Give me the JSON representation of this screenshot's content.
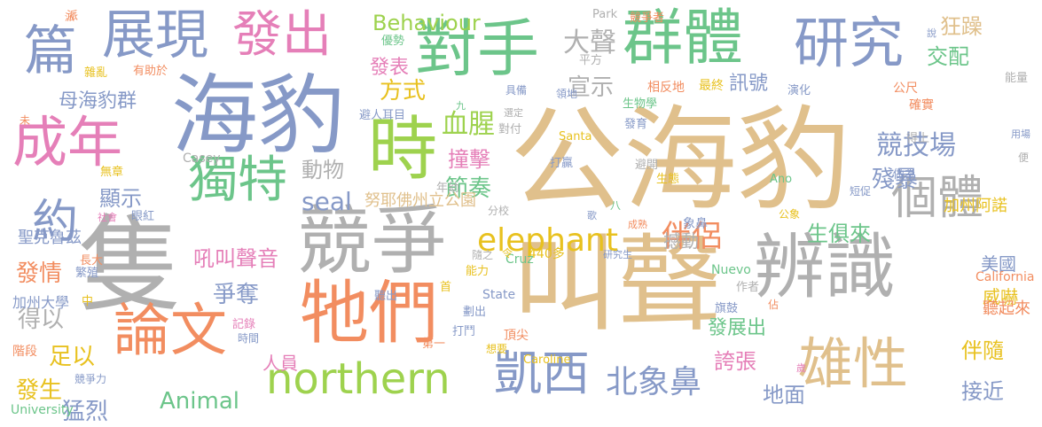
{
  "palette": {
    "tan": "#e0c08c",
    "blue": "#8699c7",
    "green": "#6cc58a",
    "lime": "#9ed24e",
    "pink": "#e57fb8",
    "orange": "#f28d60",
    "gray": "#b0b0b0",
    "yellow": "#e8c11f"
  },
  "words": [
    {
      "text": "公海豹",
      "color": "#e0c08c",
      "vertical": false
    },
    {
      "text": "叫聲",
      "color": "#e0c08c",
      "vertical": false
    },
    {
      "text": "隻",
      "color": "#b0b0b0",
      "vertical": false
    },
    {
      "text": "海豹",
      "color": "#8699c7",
      "vertical": false
    },
    {
      "text": "競爭",
      "color": "#b0b0b0",
      "vertical": false
    },
    {
      "text": "牠們",
      "color": "#f28d60",
      "vertical": false
    },
    {
      "text": "辨識",
      "color": "#b0b0b0",
      "vertical": false
    },
    {
      "text": "時",
      "color": "#9ed24e",
      "vertical": false
    },
    {
      "text": "對手",
      "color": "#6cc58a",
      "vertical": false
    },
    {
      "text": "論文",
      "color": "#f28d60",
      "vertical": false
    },
    {
      "text": "群體",
      "color": "#6cc58a",
      "vertical": false
    },
    {
      "text": "篇",
      "color": "#8699c7",
      "vertical": false
    },
    {
      "text": "展現",
      "color": "#8699c7",
      "vertical": false
    },
    {
      "text": "發出",
      "color": "#e57fb8",
      "vertical": false
    },
    {
      "text": "研究",
      "color": "#8699c7",
      "vertical": false
    },
    {
      "text": "成年",
      "color": "#e57fb8",
      "vertical": false
    },
    {
      "text": "獨特",
      "color": "#6cc58a",
      "vertical": false
    },
    {
      "text": "雄性",
      "color": "#e0c08c",
      "vertical": false
    },
    {
      "text": "個體",
      "color": "#b0b0b0",
      "vertical": false
    },
    {
      "text": "凱西",
      "color": "#8699c7",
      "vertical": false
    },
    {
      "text": "northern",
      "color": "#9ed24e",
      "vertical": false
    },
    {
      "text": "約",
      "color": "#8699c7",
      "vertical": false
    },
    {
      "text": "北象鼻",
      "color": "#8699c7",
      "vertical": false
    },
    {
      "text": "elephant",
      "color": "#e8c11f",
      "vertical": false
    },
    {
      "text": "伴侶",
      "color": "#f28d60",
      "vertical": false
    },
    {
      "text": "競技場",
      "color": "#8699c7",
      "vertical": false
    },
    {
      "text": "殘暴",
      "color": "#8699c7",
      "vertical": false
    },
    {
      "text": "血腥",
      "color": "#9ed24e",
      "vertical": false
    },
    {
      "text": "撞擊",
      "color": "#e57fb8",
      "vertical": false
    },
    {
      "text": "節奏",
      "color": "#6cc58a",
      "vertical": false
    },
    {
      "text": "Behaviour",
      "color": "#9ed24e",
      "vertical": false
    },
    {
      "text": "大聲",
      "color": "#b0b0b0",
      "vertical": false
    },
    {
      "text": "宣示",
      "color": "#b0b0b0",
      "vertical": false
    },
    {
      "text": "母海豹群",
      "color": "#8699c7",
      "vertical": false
    },
    {
      "text": "seal",
      "color": "#8699c7",
      "vertical": false
    },
    {
      "text": "顯示",
      "color": "#8699c7",
      "vertical": false
    },
    {
      "text": "吼叫聲音",
      "color": "#e57fb8",
      "vertical": false
    },
    {
      "text": "爭奪",
      "color": "#8699c7",
      "vertical": false
    },
    {
      "text": "得以",
      "color": "#b0b0b0",
      "vertical": false
    },
    {
      "text": "足以",
      "color": "#e8c11f",
      "vertical": false
    },
    {
      "text": "發情",
      "color": "#f28d60",
      "vertical": false
    },
    {
      "text": "發生",
      "color": "#e8c11f",
      "vertical": false
    },
    {
      "text": "猛烈",
      "color": "#8699c7",
      "vertical": false
    },
    {
      "text": "Animal",
      "color": "#6cc58a",
      "vertical": false
    },
    {
      "text": "人員",
      "color": "#e57fb8",
      "vertical": false
    },
    {
      "text": "誇張",
      "color": "#e57fb8",
      "vertical": false
    },
    {
      "text": "地面",
      "color": "#8699c7",
      "vertical": false
    },
    {
      "text": "接近",
      "color": "#8699c7",
      "vertical": false
    },
    {
      "text": "伴隨",
      "color": "#e8c11f",
      "vertical": false
    },
    {
      "text": "威嚇",
      "color": "#e8c11f",
      "vertical": false
    },
    {
      "text": "發展出",
      "color": "#6cc58a",
      "vertical": false
    },
    {
      "text": "生俱來",
      "color": "#6cc58a",
      "vertical": false
    },
    {
      "text": "撼動",
      "color": "#b0b0b0",
      "vertical": false
    },
    {
      "text": "動物",
      "color": "#b0b0b0",
      "vertical": false
    },
    {
      "text": "訊號",
      "color": "#8699c7",
      "vertical": false
    },
    {
      "text": "交配",
      "color": "#6cc58a",
      "vertical": false
    },
    {
      "text": "狂躁",
      "color": "#e0c08c",
      "vertical": false
    },
    {
      "text": "方式",
      "color": "#e8c11f",
      "vertical": false
    },
    {
      "text": "發表",
      "color": "#e57fb8",
      "vertical": false
    },
    {
      "text": "美國",
      "color": "#8699c7",
      "vertical": false
    },
    {
      "text": "加州阿諾",
      "color": "#e8c11f",
      "vertical": false
    },
    {
      "text": "努耶佛州立公園",
      "color": "#e0c08c",
      "vertical": false
    },
    {
      "text": "聖克魯茲",
      "color": "#8699c7",
      "vertical": false
    },
    {
      "text": "加州大學",
      "color": "#8699c7",
      "vertical": false
    },
    {
      "text": "University",
      "color": "#6cc58a",
      "vertical": false
    },
    {
      "text": "California",
      "color": "#f28d60",
      "vertical": false
    },
    {
      "text": "聽起來",
      "color": "#f28d60",
      "vertical": false
    },
    {
      "text": "State",
      "color": "#8699c7",
      "vertical": false
    },
    {
      "text": "Park",
      "color": "#b0b0b0",
      "vertical": false
    },
    {
      "text": "Santa",
      "color": "#e8c11f",
      "vertical": false
    },
    {
      "text": "Cruz",
      "color": "#6cc58a",
      "vertical": false
    },
    {
      "text": "Casey",
      "color": "#b0b0b0",
      "vertical": false
    },
    {
      "text": "Nuevo",
      "color": "#6cc58a",
      "vertical": false
    },
    {
      "text": "Caroline",
      "color": "#e8c11f",
      "vertical": false
    },
    {
      "text": "Ano",
      "color": "#6cc58a",
      "vertical": false
    },
    {
      "text": "440多",
      "color": "#e8c11f",
      "vertical": false
    },
    {
      "text": "派",
      "color": "#f28d60",
      "vertical": false
    },
    {
      "text": "競爭者",
      "color": "#f28d60",
      "vertical": false
    },
    {
      "text": "優勢",
      "color": "#6cc58a",
      "vertical": false
    },
    {
      "text": "平方",
      "color": "#b0b0b0",
      "vertical": false
    },
    {
      "text": "雜亂",
      "color": "#e8c11f",
      "vertical": false
    },
    {
      "text": "有助於",
      "color": "#f28d60",
      "vertical": false
    },
    {
      "text": "具備",
      "color": "#8699c7",
      "vertical": false
    },
    {
      "text": "相反地",
      "color": "#f28d60",
      "vertical": false
    },
    {
      "text": "最終",
      "color": "#e8c11f",
      "vertical": false
    },
    {
      "text": "領地",
      "color": "#8699c7",
      "vertical": false
    },
    {
      "text": "演化",
      "color": "#8699c7",
      "vertical": false
    },
    {
      "text": "公尺",
      "color": "#f28d60",
      "vertical": false
    },
    {
      "text": "能量",
      "color": "#b0b0b0",
      "vertical": false
    },
    {
      "text": "避人耳目",
      "color": "#8699c7",
      "vertical": false
    },
    {
      "text": "選定",
      "color": "#b0b0b0",
      "vertical": false
    },
    {
      "text": "對付",
      "color": "#b0b0b0",
      "vertical": false
    },
    {
      "text": "生物學",
      "color": "#6cc58a",
      "vertical": false
    },
    {
      "text": "發育",
      "color": "#8699c7",
      "vertical": false
    },
    {
      "text": "確實",
      "color": "#f28d60",
      "vertical": false
    },
    {
      "text": "得上",
      "color": "#b0b0b0",
      "vertical": false
    },
    {
      "text": "用場",
      "color": "#8699c7",
      "vertical": false
    },
    {
      "text": "無章",
      "color": "#e8c11f",
      "vertical": false
    },
    {
      "text": "打贏",
      "color": "#8699c7",
      "vertical": false
    },
    {
      "text": "避開",
      "color": "#b0b0b0",
      "vertical": false
    },
    {
      "text": "生態",
      "color": "#e8c11f",
      "vertical": false
    },
    {
      "text": "做為",
      "color": "#8699c7",
      "vertical": false
    },
    {
      "text": "短促",
      "color": "#8699c7",
      "vertical": false
    },
    {
      "text": "社會",
      "color": "#e57fb8",
      "vertical": false
    },
    {
      "text": "眼紅",
      "color": "#8699c7",
      "vertical": false
    },
    {
      "text": "年幼",
      "color": "#b0b0b0",
      "vertical": false
    },
    {
      "text": "分校",
      "color": "#b0b0b0",
      "vertical": false
    },
    {
      "text": "歌",
      "color": "#8699c7",
      "vertical": false
    },
    {
      "text": "成熟",
      "color": "#f28d60",
      "vertical": false
    },
    {
      "text": "象鼻",
      "color": "#8699c7",
      "vertical": false
    },
    {
      "text": "公象",
      "color": "#e8c11f",
      "vertical": false
    },
    {
      "text": "長大",
      "color": "#f28d60",
      "vertical": false
    },
    {
      "text": "繁殖",
      "color": "#8699c7",
      "vertical": false
    },
    {
      "text": "中",
      "color": "#e8c11f",
      "vertical": false
    },
    {
      "text": "隨之",
      "color": "#b0b0b0",
      "vertical": false
    },
    {
      "text": "能力",
      "color": "#e8c11f",
      "vertical": false
    },
    {
      "text": "研究生",
      "color": "#8699c7",
      "vertical": false
    },
    {
      "text": "作者",
      "color": "#b0b0b0",
      "vertical": false
    },
    {
      "text": "首",
      "color": "#e8c11f",
      "vertical": false
    },
    {
      "text": "令",
      "color": "#e8c11f",
      "vertical": false
    },
    {
      "text": "聽出",
      "color": "#8699c7",
      "vertical": false
    },
    {
      "text": "劃出",
      "color": "#8699c7",
      "vertical": false
    },
    {
      "text": "記錄",
      "color": "#e57fb8",
      "vertical": false
    },
    {
      "text": "旗鼓",
      "color": "#8699c7",
      "vertical": false
    },
    {
      "text": "打鬥",
      "color": "#8699c7",
      "vertical": false
    },
    {
      "text": "頂尖",
      "color": "#f28d60",
      "vertical": false
    },
    {
      "text": "想要",
      "color": "#e8c11f",
      "vertical": false
    },
    {
      "text": "第一",
      "color": "#f28d60",
      "vertical": false
    },
    {
      "text": "時間",
      "color": "#8699c7",
      "vertical": false
    },
    {
      "text": "階段",
      "color": "#f28d60",
      "vertical": false
    },
    {
      "text": "競爭力",
      "color": "#8699c7",
      "vertical": false
    },
    {
      "text": "歲",
      "color": "#e57fb8",
      "vertical": false
    },
    {
      "text": "未",
      "color": "#f28d60",
      "vertical": false
    },
    {
      "text": "九",
      "color": "#6cc58a",
      "vertical": false
    },
    {
      "text": "八",
      "color": "#6cc58a",
      "vertical": false
    },
    {
      "text": "佔",
      "color": "#f28d60",
      "vertical": false
    },
    {
      "text": "說",
      "color": "#8699c7",
      "vertical": false
    },
    {
      "text": "便",
      "color": "#b0b0b0",
      "vertical": false
    },
    {
      "text": "派",
      "color": "#f28d60",
      "vertical": false
    }
  ]
}
